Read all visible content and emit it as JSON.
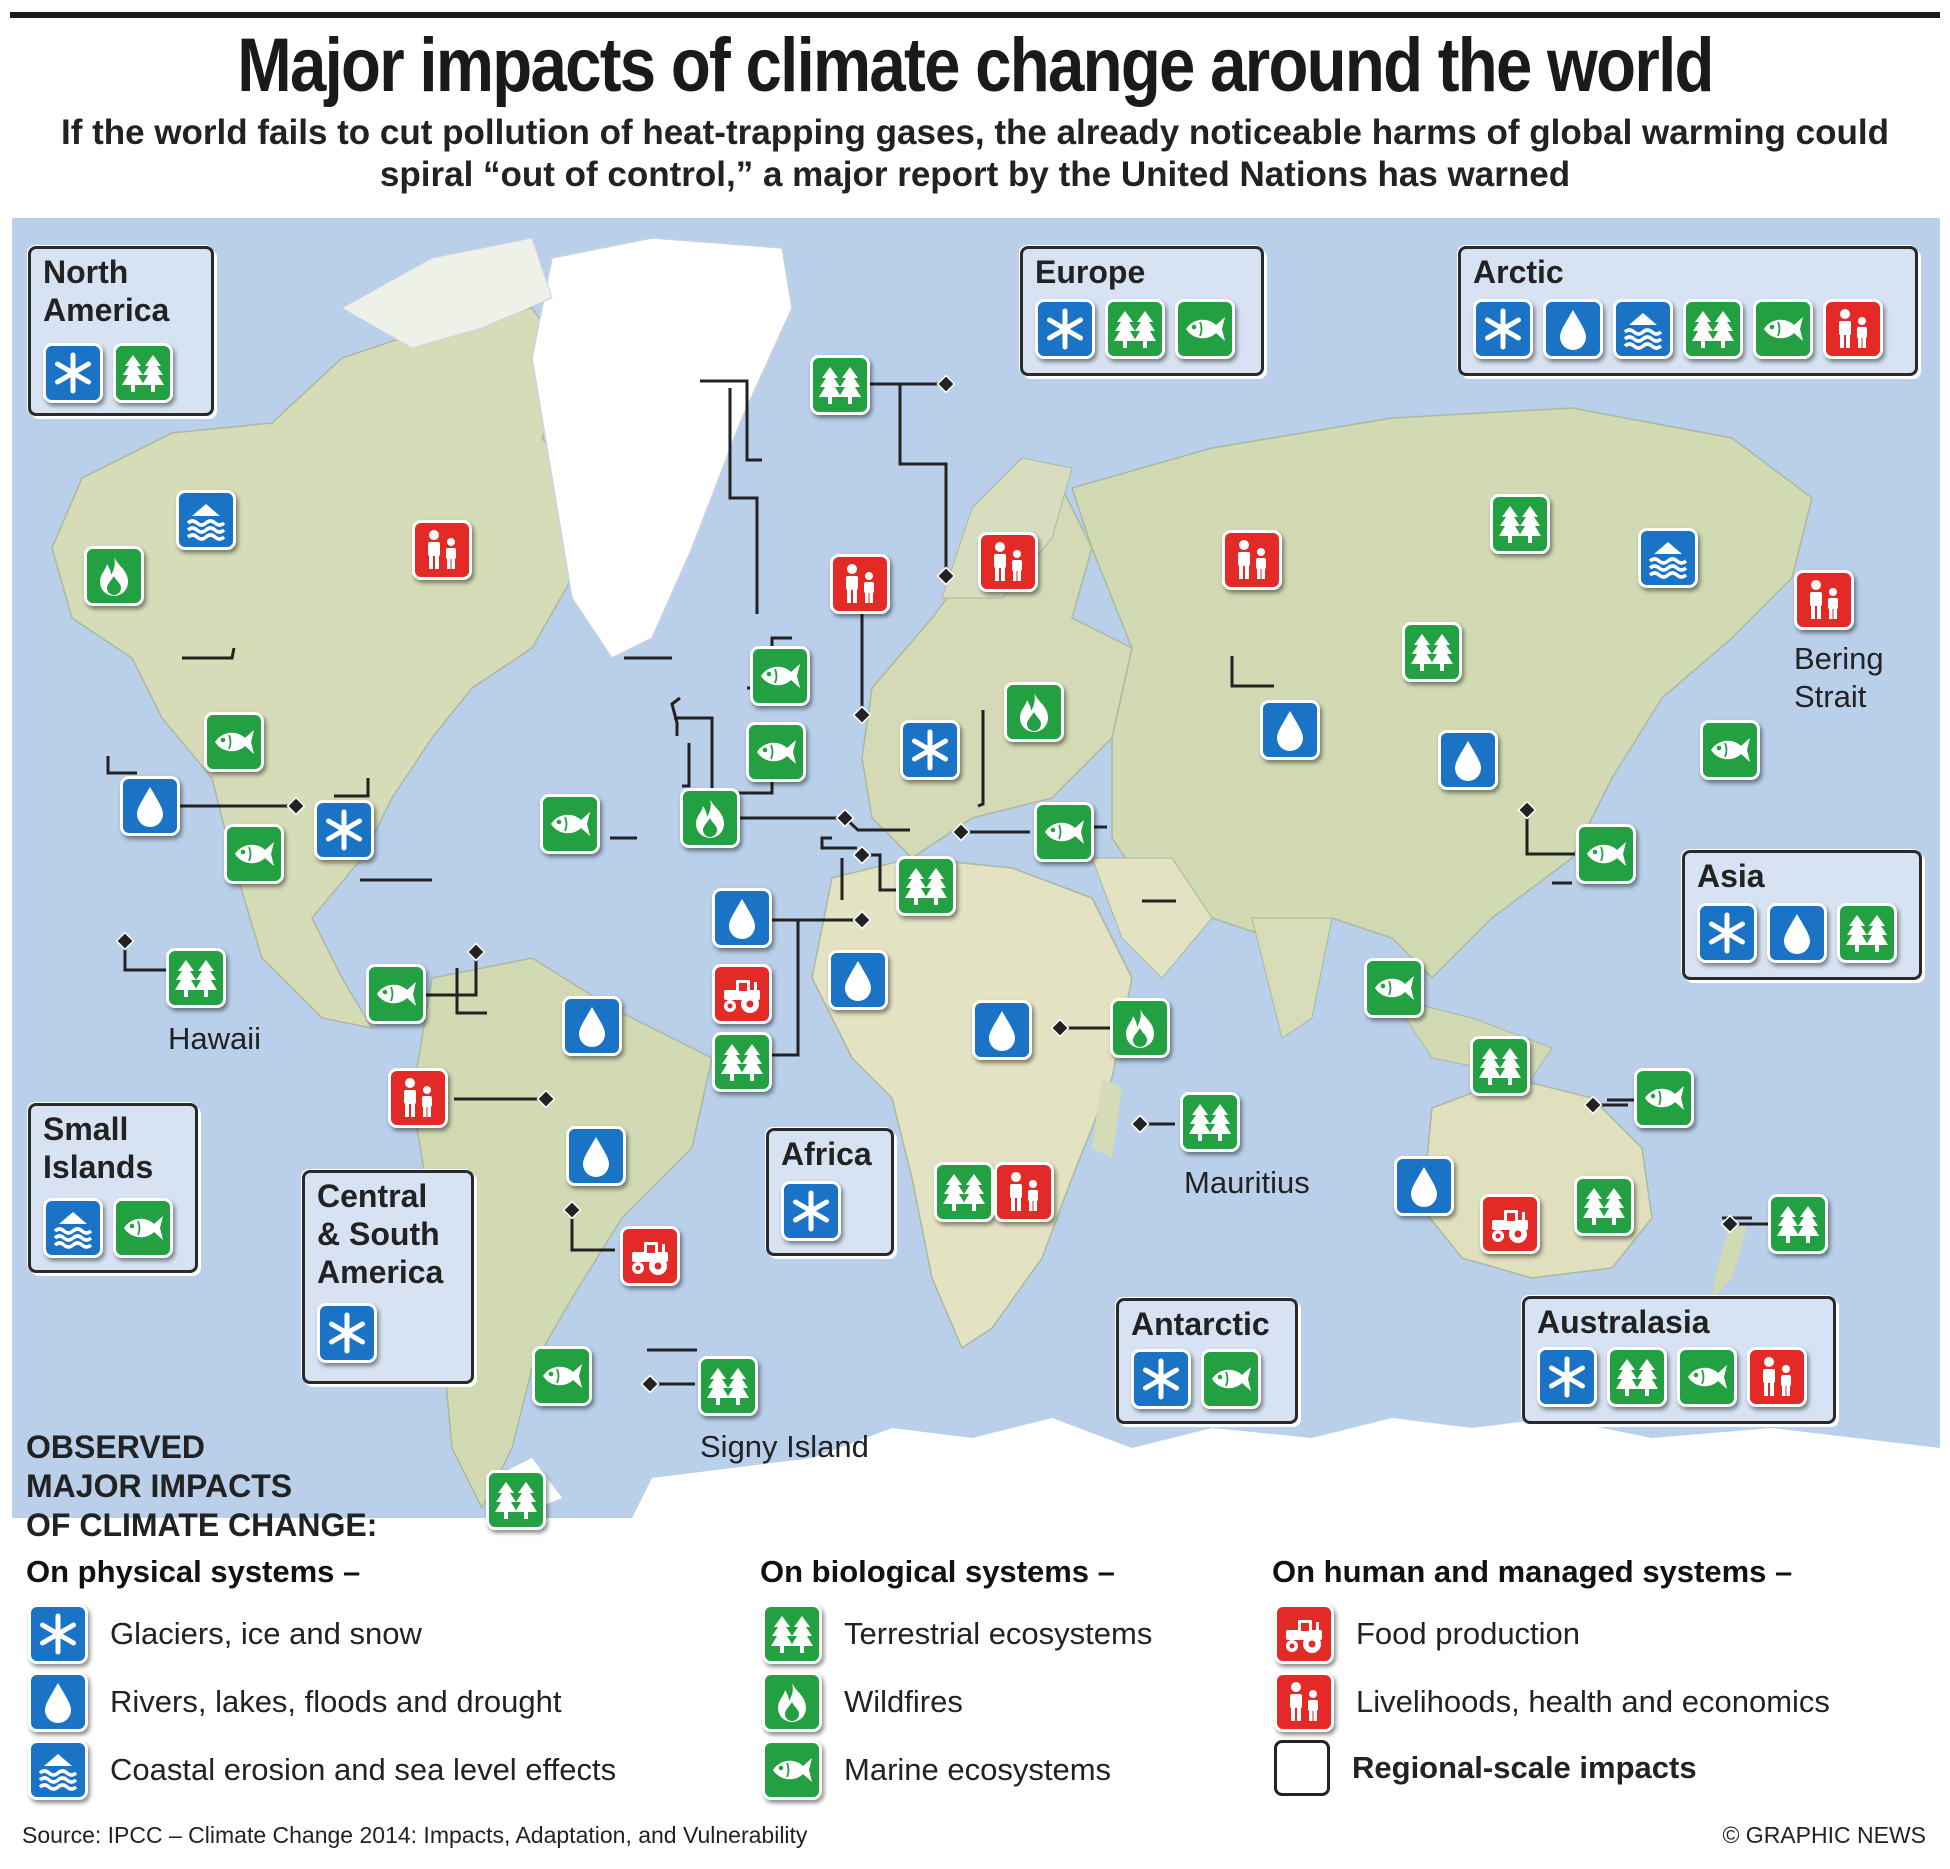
{
  "title": "Major impacts of climate change around the world",
  "subtitle": "If the world fails to cut pollution of heat-trapping gases, the already noticeable harms of global warming could spiral “out of control,” a major report by the United Nations has warned",
  "colors": {
    "physical": "#1a73c5",
    "biological": "#23a142",
    "human": "#e32a26",
    "ocean": "#b9cfea",
    "land": "#d9dcbf"
  },
  "regions": {
    "north_america": {
      "name": "North\nAmerica",
      "icons": [
        "snowflake-icon",
        "trees-icon"
      ]
    },
    "europe": {
      "name": "Europe",
      "icons": [
        "snowflake-icon",
        "trees-icon",
        "fish-icon"
      ]
    },
    "arctic": {
      "name": "Arctic",
      "icons": [
        "snowflake-icon",
        "water-drop-icon",
        "sea-level-icon",
        "trees-icon",
        "fish-icon",
        "people-icon"
      ]
    },
    "asia": {
      "name": "Asia",
      "icons": [
        "snowflake-icon",
        "water-drop-icon",
        "trees-icon"
      ]
    },
    "small_islands": {
      "name": "Small\nIslands",
      "icons": [
        "sea-level-icon",
        "fish-icon"
      ]
    },
    "central_south_america": {
      "name": "Central\n& South\nAmerica",
      "icons": [
        "snowflake-icon"
      ]
    },
    "africa": {
      "name": "Africa",
      "icons": [
        "snowflake-icon"
      ]
    },
    "antarctic": {
      "name": "Antarctic",
      "icons": [
        "snowflake-icon",
        "fish-icon"
      ]
    },
    "australasia": {
      "name": "Australasia",
      "icons": [
        "snowflake-icon",
        "trees-icon",
        "fish-icon",
        "people-icon"
      ]
    }
  },
  "places": {
    "hawaii": "Hawaii",
    "bering_strait": "Bering\nStrait",
    "mauritius": "Mauritius",
    "signy_island": "Signy Island"
  },
  "legend": {
    "title": "OBSERVED\nMAJOR IMPACTS\nOF CLIMATE CHANGE:",
    "physical": {
      "heading": "On physical systems –",
      "items": [
        {
          "icon": "snowflake-icon",
          "label": "Glaciers, ice and snow"
        },
        {
          "icon": "water-drop-icon",
          "label": "Rivers, lakes, floods and drought"
        },
        {
          "icon": "sea-level-icon",
          "label": "Coastal erosion and sea level effects"
        }
      ]
    },
    "biological": {
      "heading": "On biological systems –",
      "items": [
        {
          "icon": "trees-icon",
          "label": "Terrestrial ecosystems"
        },
        {
          "icon": "flame-icon",
          "label": "Wildfires"
        },
        {
          "icon": "fish-icon",
          "label": "Marine ecosystems"
        }
      ]
    },
    "human": {
      "heading": "On human and managed systems –",
      "items": [
        {
          "icon": "tractor-icon",
          "label": "Food production"
        },
        {
          "icon": "people-icon",
          "label": "Livelihoods, health and economics"
        },
        {
          "icon": "region-box-icon",
          "label": "Regional-scale impacts"
        }
      ]
    }
  },
  "footer": {
    "source": "Source: IPCC – Climate Change 2014: Impacts, Adaptation, and Vulnerability",
    "credit": "© GRAPHIC NEWS"
  }
}
